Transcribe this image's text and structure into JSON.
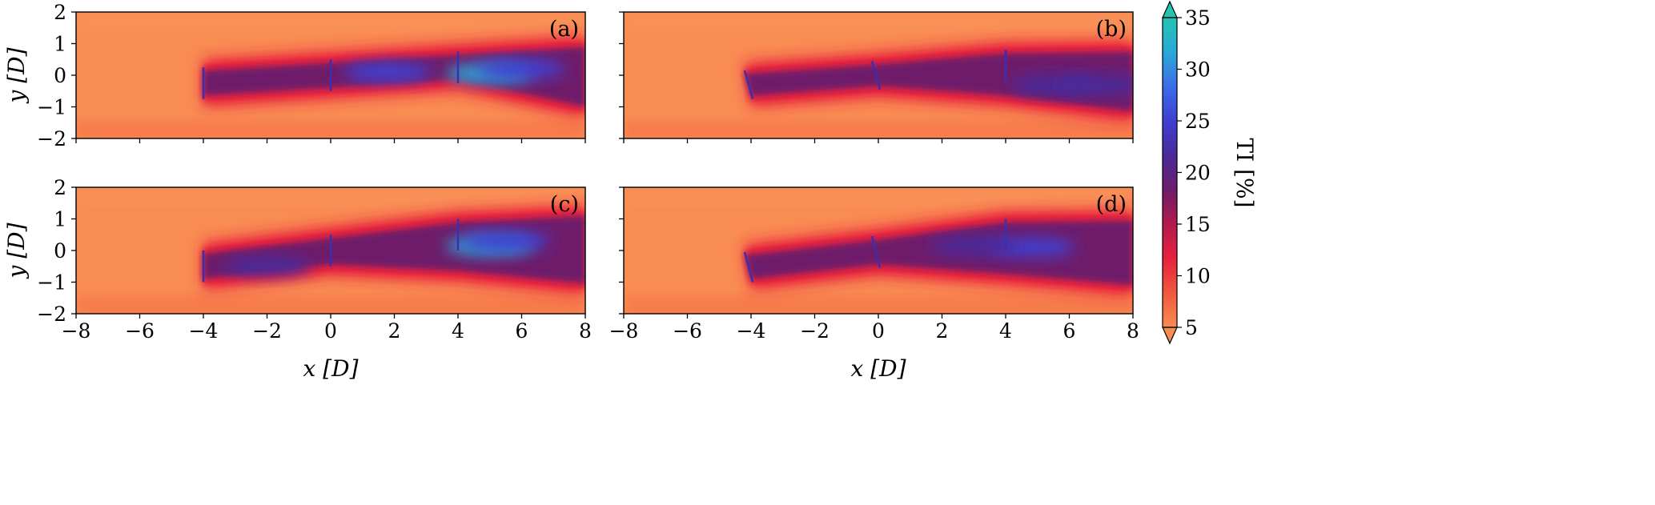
{
  "chart_data": [
    {
      "type": "heatmap",
      "panel_label": "(a)",
      "xlabel": "",
      "ylabel": "y [D]",
      "xlim": [
        -8,
        8
      ],
      "ylim": [
        -2,
        2
      ],
      "x_ticks": [
        -8,
        -6,
        -4,
        -2,
        0,
        2,
        4,
        6,
        8
      ],
      "y_ticks": [
        -2,
        -1,
        0,
        1,
        2
      ],
      "turbines": [
        {
          "x": -4.0,
          "y_bottom": -0.75,
          "y_top": 0.25
        },
        {
          "x": 0.0,
          "y_bottom": -0.5,
          "y_top": 0.5
        },
        {
          "x": 4.0,
          "y_bottom": -0.25,
          "y_top": 0.75
        }
      ],
      "wake": {
        "upper": [
          [
            -4,
            0.25
          ],
          [
            0,
            0.5
          ],
          [
            4,
            0.75
          ],
          [
            8,
            1.0
          ]
        ],
        "lower": [
          [
            -4,
            -0.75
          ],
          [
            0,
            -0.5
          ],
          [
            4,
            -0.25
          ],
          [
            8,
            -1.1
          ]
        ]
      },
      "hotspots": [
        {
          "x": 5.0,
          "y": 0.05,
          "ti": 33
        },
        {
          "x": 1.8,
          "y": 0.1,
          "ti": 25
        },
        {
          "x": 6.0,
          "y": 0.2,
          "ti": 24
        }
      ]
    },
    {
      "type": "heatmap",
      "panel_label": "(b)",
      "xlabel": "",
      "ylabel": "",
      "xlim": [
        -8,
        8
      ],
      "ylim": [
        -2,
        2
      ],
      "x_ticks": [
        -8,
        -6,
        -4,
        -2,
        0,
        2,
        4,
        6,
        8
      ],
      "y_ticks": [
        -2,
        -1,
        0,
        1,
        2
      ],
      "turbines": [
        {
          "x": -4.2,
          "y_bottom": -0.75,
          "y_top": 0.15,
          "yawed": true
        },
        {
          "x": -0.2,
          "y_bottom": -0.45,
          "y_top": 0.45,
          "yawed": true
        },
        {
          "x": 4.0,
          "y_bottom": -0.2,
          "y_top": 0.8
        }
      ],
      "wake": {
        "upper": [
          [
            -4.2,
            0.15
          ],
          [
            0,
            0.45
          ],
          [
            4,
            0.8
          ],
          [
            8,
            0.85
          ]
        ],
        "lower": [
          [
            -4,
            -0.75
          ],
          [
            0,
            -0.45
          ],
          [
            4,
            -0.75
          ],
          [
            8,
            -1.25
          ]
        ]
      },
      "hotspots": [
        {
          "x": 5.5,
          "y": -0.3,
          "ti": 22
        },
        {
          "x": 7.0,
          "y": -0.3,
          "ti": 20
        }
      ]
    },
    {
      "type": "heatmap",
      "panel_label": "(c)",
      "xlabel": "x [D]",
      "ylabel": "y [D]",
      "xlim": [
        -8,
        8
      ],
      "ylim": [
        -2,
        2
      ],
      "x_ticks": [
        -8,
        -6,
        -4,
        -2,
        0,
        2,
        4,
        6,
        8
      ],
      "y_ticks": [
        -2,
        -1,
        0,
        1,
        2
      ],
      "turbines": [
        {
          "x": -4.0,
          "y_bottom": -1.0,
          "y_top": 0.0
        },
        {
          "x": 0.0,
          "y_bottom": -0.5,
          "y_top": 0.5
        },
        {
          "x": 4.0,
          "y_bottom": 0.0,
          "y_top": 1.0
        }
      ],
      "wake": {
        "upper": [
          [
            -4,
            0.0
          ],
          [
            0,
            0.5
          ],
          [
            4,
            1.0
          ],
          [
            8,
            1.2
          ]
        ],
        "lower": [
          [
            -4,
            -1.0
          ],
          [
            0,
            -0.55
          ],
          [
            4,
            -0.75
          ],
          [
            8,
            -1.15
          ]
        ]
      },
      "hotspots": [
        {
          "x": 5.0,
          "y": 0.15,
          "ti": 30
        },
        {
          "x": 5.5,
          "y": 0.3,
          "ti": 25
        },
        {
          "x": -2.0,
          "y": -0.5,
          "ti": 21
        }
      ]
    },
    {
      "type": "heatmap",
      "panel_label": "(d)",
      "xlabel": "x [D]",
      "ylabel": "",
      "xlim": [
        -8,
        8
      ],
      "ylim": [
        -2,
        2
      ],
      "x_ticks": [
        -8,
        -6,
        -4,
        -2,
        0,
        2,
        4,
        6,
        8
      ],
      "y_ticks": [
        -2,
        -1,
        0,
        1,
        2
      ],
      "turbines": [
        {
          "x": -4.2,
          "y_bottom": -1.0,
          "y_top": -0.05,
          "yawed": true
        },
        {
          "x": -0.2,
          "y_bottom": -0.55,
          "y_top": 0.45,
          "yawed": true
        },
        {
          "x": 4.0,
          "y_bottom": 0.05,
          "y_top": 1.0
        }
      ],
      "wake": {
        "upper": [
          [
            -4.2,
            -0.05
          ],
          [
            0,
            0.45
          ],
          [
            4,
            1.0
          ],
          [
            8,
            1.05
          ]
        ],
        "lower": [
          [
            -4,
            -1.0
          ],
          [
            0,
            -0.55
          ],
          [
            4,
            -0.85
          ],
          [
            8,
            -1.2
          ]
        ]
      },
      "hotspots": [
        {
          "x": 4.8,
          "y": 0.1,
          "ti": 26
        },
        {
          "x": 3.0,
          "y": 0.15,
          "ti": 22
        }
      ]
    }
  ],
  "colorbar": {
    "label": "TI [%]",
    "min": 5,
    "max": 35,
    "ticks": [
      5,
      10,
      15,
      20,
      25,
      30,
      35
    ],
    "extend": "both",
    "colors": [
      "#f98c53",
      "#f0583d",
      "#e8213e",
      "#b21a4c",
      "#6e1d6b",
      "#4a2a9c",
      "#3f3fd0",
      "#3b6de8",
      "#2aa9d8",
      "#23c4b3"
    ]
  }
}
